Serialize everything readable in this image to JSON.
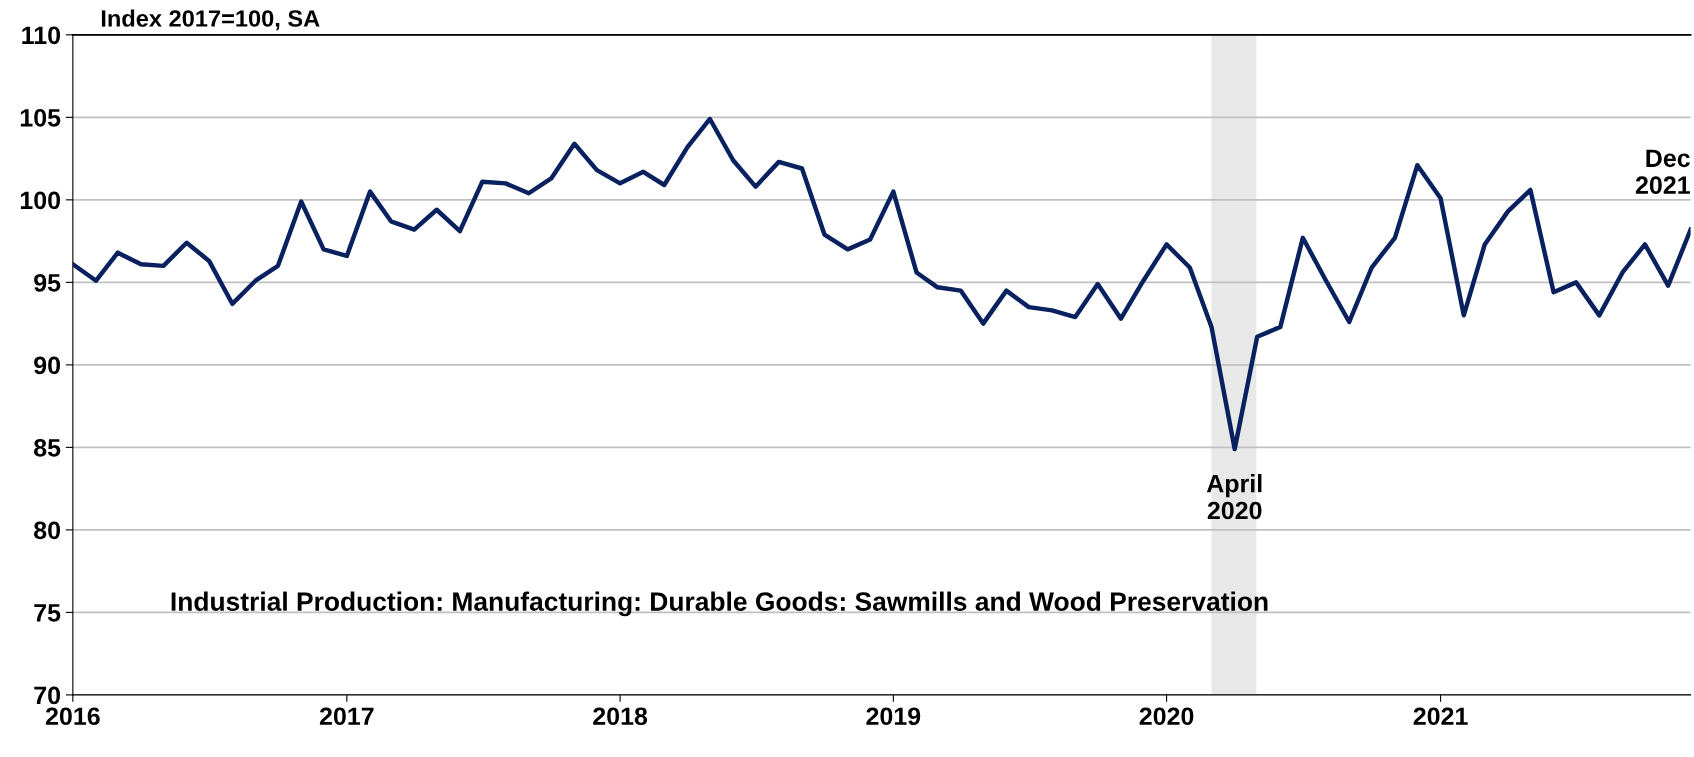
{
  "chart_data": {
    "type": "line",
    "title": "Industrial Production: Manufacturing: Durable Goods: Sawmills and Wood Preservation",
    "ylabel": "Index 2017=100, SA",
    "x": [
      "2016-01",
      "2016-02",
      "2016-03",
      "2016-04",
      "2016-05",
      "2016-06",
      "2016-07",
      "2016-08",
      "2016-09",
      "2016-10",
      "2016-11",
      "2016-12",
      "2017-01",
      "2017-02",
      "2017-03",
      "2017-04",
      "2017-05",
      "2017-06",
      "2017-07",
      "2017-08",
      "2017-09",
      "2017-10",
      "2017-11",
      "2017-12",
      "2018-01",
      "2018-02",
      "2018-03",
      "2018-04",
      "2018-05",
      "2018-06",
      "2018-07",
      "2018-08",
      "2018-09",
      "2018-10",
      "2018-11",
      "2018-12",
      "2019-01",
      "2019-02",
      "2019-03",
      "2019-04",
      "2019-05",
      "2019-06",
      "2019-07",
      "2019-08",
      "2019-09",
      "2019-10",
      "2019-11",
      "2019-12",
      "2020-01",
      "2020-02",
      "2020-03",
      "2020-04",
      "2020-05",
      "2020-06",
      "2020-07",
      "2020-08",
      "2020-09",
      "2020-10",
      "2020-11",
      "2020-12",
      "2021-01",
      "2021-02",
      "2021-03",
      "2021-04",
      "2021-05",
      "2021-06",
      "2021-07",
      "2021-08",
      "2021-09",
      "2021-10",
      "2021-11",
      "2021-12"
    ],
    "series": [
      {
        "color": "#0a2160",
        "values": [
          96.1,
          95.1,
          96.8,
          96.1,
          96.0,
          97.4,
          96.3,
          93.7,
          95.1,
          96.0,
          99.9,
          97.0,
          96.6,
          100.5,
          98.7,
          98.2,
          99.4,
          98.1,
          101.1,
          101.0,
          100.4,
          101.3,
          103.4,
          101.8,
          101.0,
          101.7,
          100.9,
          103.2,
          104.9,
          102.4,
          100.8,
          102.3,
          101.9,
          97.9,
          97.0,
          97.6,
          100.5,
          95.6,
          94.7,
          94.5,
          92.5,
          94.5,
          93.5,
          93.3,
          92.9,
          94.9,
          92.8,
          95.1,
          97.3,
          95.9,
          92.3,
          84.9,
          91.7,
          92.3,
          97.7,
          95.1,
          92.6,
          95.9,
          97.7,
          102.1,
          100.1,
          93.0,
          97.3,
          99.3,
          100.6,
          94.4,
          95.0,
          93.0,
          95.6,
          97.3,
          94.8,
          98.2
        ]
      }
    ],
    "xlim": [
      "2016-01",
      "2021-12"
    ],
    "xticks": [
      {
        "value": "2016-01",
        "label": "2016"
      },
      {
        "value": "2017-01",
        "label": "2017"
      },
      {
        "value": "2018-01",
        "label": "2018"
      },
      {
        "value": "2019-01",
        "label": "2019"
      },
      {
        "value": "2020-01",
        "label": "2020"
      },
      {
        "value": "2021-01",
        "label": "2021"
      }
    ],
    "ylim": [
      70,
      110
    ],
    "yticks": [
      70,
      75,
      80,
      85,
      90,
      95,
      100,
      105,
      110
    ],
    "bands": [
      {
        "axis": "x",
        "from": "2020-03-01",
        "to": "2020-04-30",
        "label": null,
        "color": "#e8e8e8"
      }
    ],
    "annotations": [
      {
        "text": "April\n2020",
        "x": "2020-04",
        "y": 84.9
      },
      {
        "text": "Dec\n2021",
        "x": "2021-12",
        "y": 98.2
      }
    ],
    "grid": "y",
    "line_style": "solid",
    "marker": "none"
  }
}
